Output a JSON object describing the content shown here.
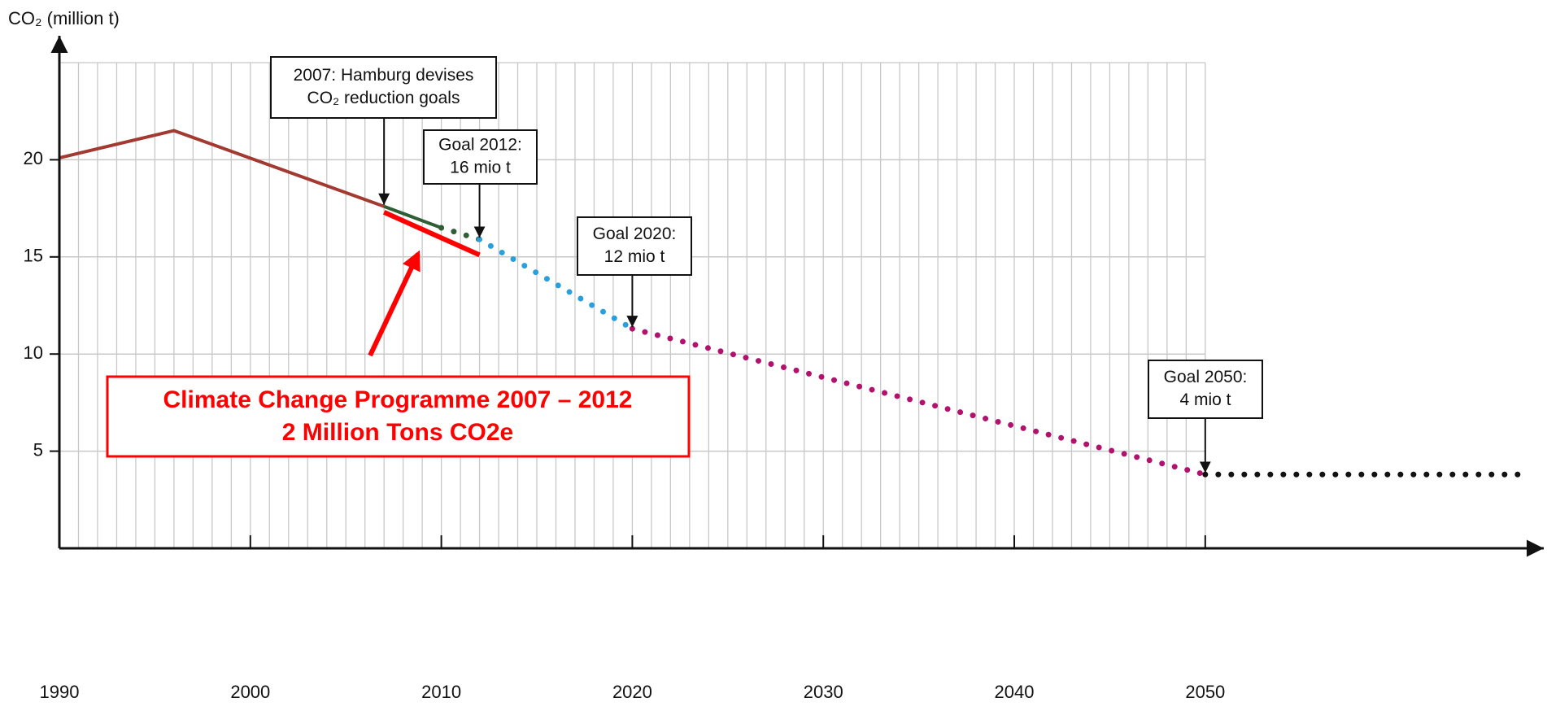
{
  "chart_data": {
    "type": "line",
    "y_label": "CO₂ (million t)",
    "xlim": [
      1990,
      2067
    ],
    "ylim": [
      0,
      25
    ],
    "xticks": [
      1990,
      2000,
      2010,
      2020,
      2030,
      2040,
      2050
    ],
    "yticks": [
      5,
      10,
      15,
      20
    ],
    "grid": true,
    "xgrid_step": 1,
    "series": [
      {
        "color": "#a33a32",
        "style": "solid",
        "x": [
          1990,
          1996,
          2007
        ],
        "values": [
          20.1,
          21.5,
          17.6
        ]
      },
      {
        "color": "#2e5e34",
        "style": "solid",
        "x": [
          2007,
          2010
        ],
        "values": [
          17.6,
          16.5
        ]
      },
      {
        "color": "#2e5e34",
        "style": "dotted",
        "x": [
          2010,
          2012
        ],
        "values": [
          16.5,
          15.9
        ]
      },
      {
        "color": "#2a9fdc",
        "style": "dotted",
        "x": [
          2012,
          2020
        ],
        "values": [
          15.9,
          11.3
        ]
      },
      {
        "color": "#b0126e",
        "style": "dotted",
        "x": [
          2020,
          2050
        ],
        "values": [
          11.3,
          3.8
        ]
      },
      {
        "color": "#111111",
        "style": "dotted",
        "x": [
          2050,
          2067
        ],
        "values": [
          3.8,
          3.8
        ]
      },
      {
        "color": "#ff0000",
        "style": "thick",
        "x": [
          2007,
          2012
        ],
        "values": [
          17.3,
          15.1
        ]
      }
    ],
    "annotations": [
      {
        "lines": [
          "2007: Hamburg devises",
          "CO₂ reduction goals"
        ],
        "x": 2007,
        "y": 17.6
      },
      {
        "lines": [
          "Goal 2012:",
          "16 mio t"
        ],
        "x": 2012,
        "y": 15.9
      },
      {
        "lines": [
          "Goal 2020:",
          "12 mio t"
        ],
        "x": 2020,
        "y": 11.3
      },
      {
        "lines": [
          "Goal 2050:",
          "4 mio t"
        ],
        "x": 2050,
        "y": 3.8
      }
    ],
    "callout": {
      "lines": [
        "Climate Change Programme 2007 – 2012",
        "2 Million Tons CO2e"
      ]
    }
  }
}
